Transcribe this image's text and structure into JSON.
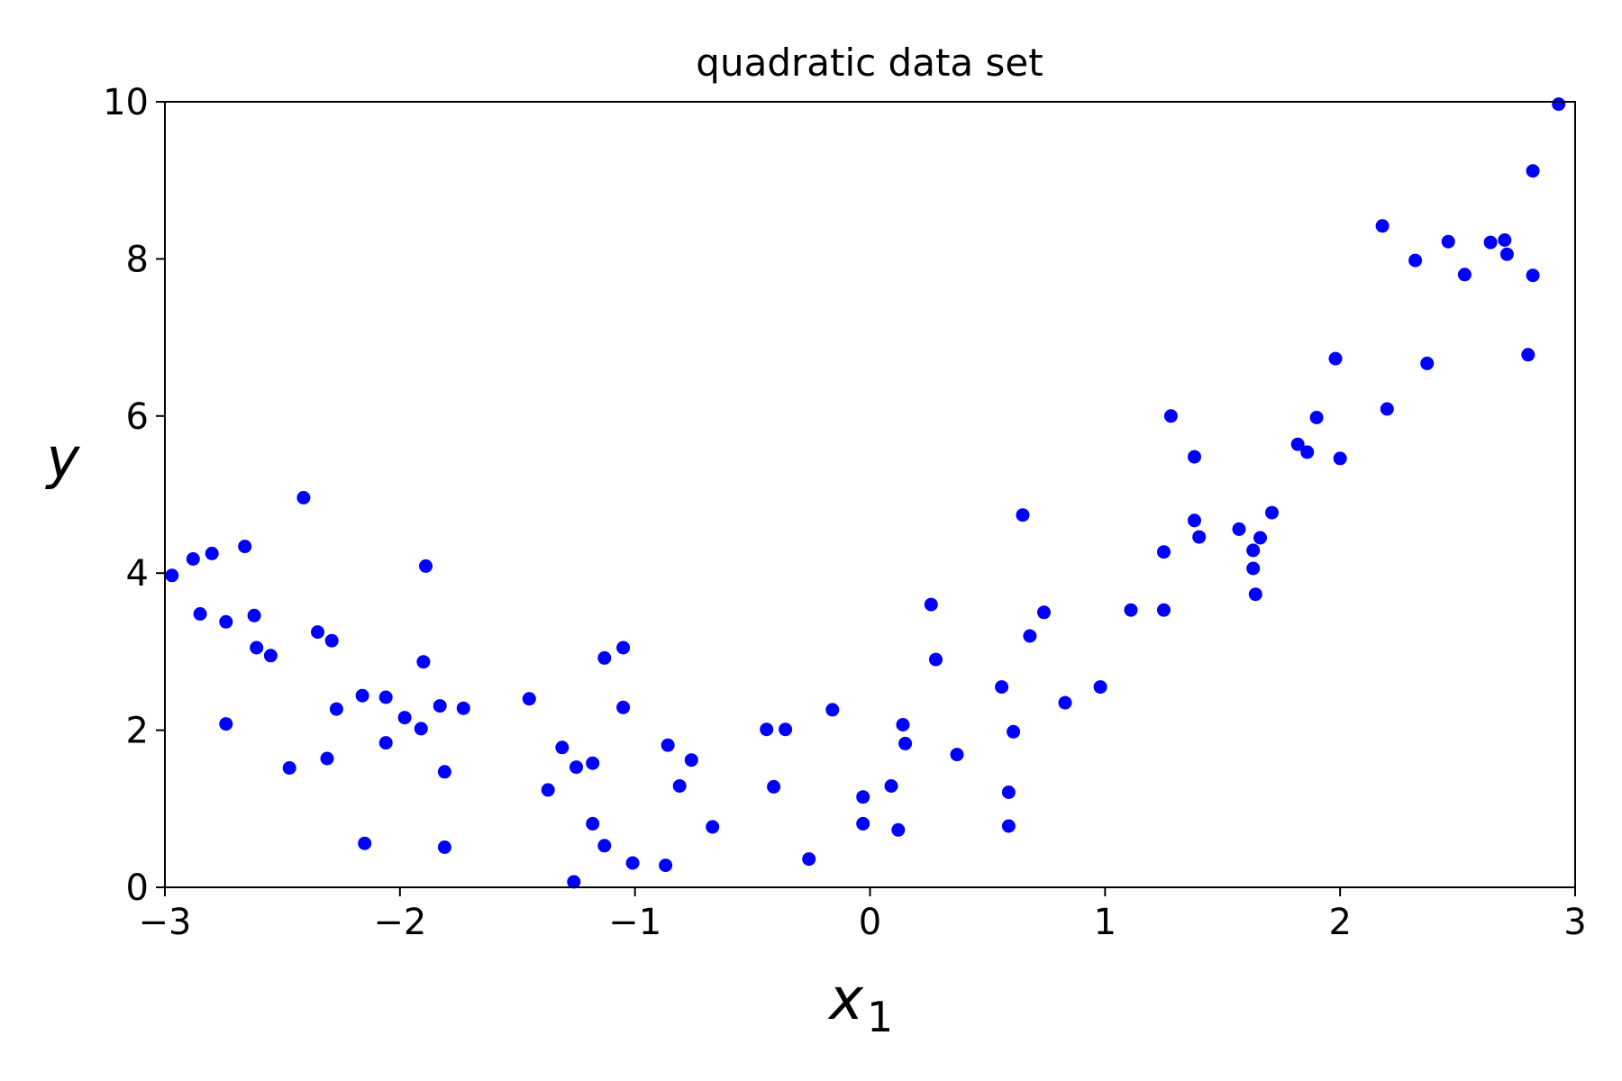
{
  "chart_data": {
    "type": "scatter",
    "title": "quadratic data set",
    "xlabel": "x",
    "xlabel_subscript": "1",
    "ylabel": "y",
    "xlim": [
      -3,
      3
    ],
    "ylim": [
      0,
      10
    ],
    "xticks": [
      -3,
      -2,
      -1,
      0,
      1,
      2,
      3
    ],
    "xtick_labels": [
      "−3",
      "−2",
      "−1",
      "0",
      "1",
      "2",
      "3"
    ],
    "yticks": [
      0,
      2,
      4,
      6,
      8,
      10
    ],
    "ytick_labels": [
      "0",
      "2",
      "4",
      "6",
      "8",
      "10"
    ],
    "grid": false,
    "marker_color": "#0000ff",
    "points": [
      [
        -2.97,
        3.97
      ],
      [
        -2.88,
        4.18
      ],
      [
        -2.85,
        3.48
      ],
      [
        -2.8,
        4.25
      ],
      [
        -2.74,
        3.38
      ],
      [
        -2.74,
        2.08
      ],
      [
        -2.66,
        4.34
      ],
      [
        -2.62,
        3.46
      ],
      [
        -2.61,
        3.05
      ],
      [
        -2.55,
        2.95
      ],
      [
        -2.47,
        1.52
      ],
      [
        -2.41,
        4.96
      ],
      [
        -2.35,
        3.25
      ],
      [
        -2.31,
        1.64
      ],
      [
        -2.29,
        3.14
      ],
      [
        -2.27,
        2.27
      ],
      [
        -2.16,
        2.44
      ],
      [
        -2.15,
        0.56
      ],
      [
        -2.06,
        2.42
      ],
      [
        -2.06,
        1.84
      ],
      [
        -1.98,
        2.16
      ],
      [
        -1.91,
        2.02
      ],
      [
        -1.9,
        2.87
      ],
      [
        -1.89,
        4.09
      ],
      [
        -1.83,
        2.31
      ],
      [
        -1.81,
        1.47
      ],
      [
        -1.81,
        0.51
      ],
      [
        -1.73,
        2.28
      ],
      [
        -1.45,
        2.4
      ],
      [
        -1.37,
        1.24
      ],
      [
        -1.31,
        1.78
      ],
      [
        -1.26,
        0.07
      ],
      [
        -1.25,
        1.53
      ],
      [
        -1.18,
        0.81
      ],
      [
        -1.18,
        1.58
      ],
      [
        -1.13,
        0.53
      ],
      [
        -1.13,
        2.92
      ],
      [
        -1.05,
        3.05
      ],
      [
        -1.05,
        2.29
      ],
      [
        -1.01,
        0.31
      ],
      [
        -0.87,
        0.28
      ],
      [
        -0.86,
        1.81
      ],
      [
        -0.81,
        1.29
      ],
      [
        -0.76,
        1.62
      ],
      [
        -0.67,
        0.77
      ],
      [
        -0.44,
        2.01
      ],
      [
        -0.41,
        1.28
      ],
      [
        -0.36,
        2.01
      ],
      [
        -0.26,
        0.36
      ],
      [
        -0.16,
        2.26
      ],
      [
        -0.03,
        1.15
      ],
      [
        -0.03,
        0.81
      ],
      [
        0.09,
        1.29
      ],
      [
        0.12,
        0.73
      ],
      [
        0.14,
        2.07
      ],
      [
        0.15,
        1.83
      ],
      [
        0.26,
        3.6
      ],
      [
        0.28,
        2.9
      ],
      [
        0.37,
        1.69
      ],
      [
        0.56,
        2.55
      ],
      [
        0.59,
        1.21
      ],
      [
        0.59,
        0.78
      ],
      [
        0.61,
        1.98
      ],
      [
        0.65,
        4.74
      ],
      [
        0.68,
        3.2
      ],
      [
        0.74,
        3.5
      ],
      [
        0.83,
        2.35
      ],
      [
        0.98,
        2.55
      ],
      [
        1.11,
        3.53
      ],
      [
        1.25,
        4.27
      ],
      [
        1.25,
        3.53
      ],
      [
        1.28,
        6.0
      ],
      [
        1.38,
        5.48
      ],
      [
        1.38,
        4.67
      ],
      [
        1.4,
        4.46
      ],
      [
        1.57,
        4.56
      ],
      [
        1.63,
        4.29
      ],
      [
        1.63,
        4.06
      ],
      [
        1.64,
        3.73
      ],
      [
        1.66,
        4.45
      ],
      [
        1.71,
        4.77
      ],
      [
        1.82,
        5.64
      ],
      [
        1.86,
        5.54
      ],
      [
        1.9,
        5.98
      ],
      [
        1.98,
        6.73
      ],
      [
        2.0,
        5.46
      ],
      [
        2.18,
        8.42
      ],
      [
        2.2,
        6.09
      ],
      [
        2.32,
        7.98
      ],
      [
        2.37,
        6.67
      ],
      [
        2.46,
        8.22
      ],
      [
        2.53,
        7.8
      ],
      [
        2.64,
        8.21
      ],
      [
        2.7,
        8.24
      ],
      [
        2.71,
        8.06
      ],
      [
        2.8,
        6.78
      ],
      [
        2.82,
        9.12
      ],
      [
        2.82,
        7.79
      ],
      [
        2.93,
        9.97
      ]
    ]
  }
}
